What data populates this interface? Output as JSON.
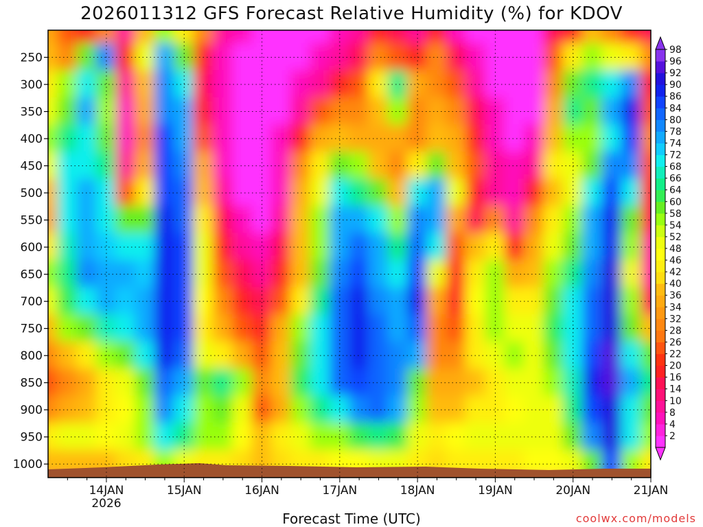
{
  "header": {
    "title": "2026011312 GFS Forecast Relative Humidity (%) for KDOV"
  },
  "footer": {
    "xlabel": "Forecast Time (UTC)",
    "credit": "coolwx.com/models"
  },
  "chart_data": {
    "type": "heatmap",
    "title": "2026011312 GFS Forecast Relative Humidity (%) for KDOV",
    "xlabel": "Forecast Time (UTC)",
    "ylabel": "",
    "x_ticks": [
      {
        "label": "14JAN",
        "sub": "2026",
        "t": 24
      },
      {
        "label": "15JAN",
        "sub": "",
        "t": 48
      },
      {
        "label": "16JAN",
        "sub": "",
        "t": 72
      },
      {
        "label": "17JAN",
        "sub": "",
        "t": 96
      },
      {
        "label": "18JAN",
        "sub": "",
        "t": 120
      },
      {
        "label": "19JAN",
        "sub": "",
        "t": 144
      },
      {
        "label": "20JAN",
        "sub": "",
        "t": 168
      },
      {
        "label": "21JAN",
        "sub": "",
        "t": 192
      }
    ],
    "xlim": [
      6,
      192
    ],
    "y_ticks": [
      250,
      300,
      350,
      400,
      450,
      500,
      550,
      600,
      650,
      700,
      750,
      800,
      850,
      900,
      950,
      1000
    ],
    "ylim": [
      200,
      1025
    ],
    "pressure_levels": [
      200,
      250,
      300,
      350,
      400,
      450,
      500,
      550,
      600,
      650,
      700,
      750,
      800,
      850,
      900,
      950,
      1000
    ],
    "colorbar": {
      "levels": [
        2,
        4,
        8,
        10,
        14,
        16,
        20,
        22,
        26,
        28,
        32,
        34,
        36,
        40,
        42,
        46,
        48,
        52,
        54,
        58,
        60,
        64,
        66,
        68,
        72,
        74,
        78,
        80,
        84,
        86,
        90,
        92,
        96,
        98
      ],
      "colors": [
        "#ff33ff",
        "#ff22dd",
        "#ff11bb",
        "#ff1199",
        "#ff1177",
        "#ff1155",
        "#ff2222",
        "#ff3311",
        "#ff5511",
        "#ff7711",
        "#ff8811",
        "#ff9911",
        "#ffaa11",
        "#ffbb11",
        "#ffdd11",
        "#ffee11",
        "#ffff11",
        "#eeff11",
        "#ccff11",
        "#99ff11",
        "#66ee22",
        "#33ee55",
        "#11ee88",
        "#11eebb",
        "#11eeee",
        "#11ccff",
        "#11aaff",
        "#1188ff",
        "#1166ff",
        "#1144ff",
        "#1122ee",
        "#2211dd",
        "#5511dd",
        "#8833ee"
      ]
    },
    "times": [
      6,
      12,
      18,
      24,
      30,
      36,
      42,
      48,
      54,
      60,
      66,
      72,
      78,
      84,
      90,
      96,
      102,
      108,
      114,
      120,
      126,
      132,
      138,
      144,
      150,
      156,
      162,
      168,
      174,
      180,
      186,
      192
    ],
    "rh": [
      [
        35,
        25,
        20,
        30,
        10,
        40,
        55,
        45,
        30,
        10,
        5,
        2,
        2,
        2,
        2,
        5,
        10,
        20,
        15,
        10,
        20,
        5,
        2,
        2,
        2,
        2,
        15,
        20,
        40,
        30,
        20,
        15
      ],
      [
        40,
        30,
        60,
        80,
        20,
        50,
        75,
        60,
        20,
        5,
        2,
        2,
        2,
        2,
        5,
        10,
        15,
        30,
        25,
        20,
        30,
        15,
        5,
        2,
        2,
        2,
        25,
        45,
        55,
        50,
        45,
        30
      ],
      [
        45,
        55,
        70,
        60,
        10,
        40,
        80,
        70,
        15,
        5,
        2,
        2,
        2,
        5,
        10,
        20,
        25,
        45,
        65,
        35,
        30,
        25,
        10,
        2,
        2,
        2,
        30,
        60,
        65,
        70,
        80,
        20
      ],
      [
        50,
        60,
        75,
        55,
        5,
        35,
        80,
        75,
        20,
        5,
        2,
        2,
        2,
        10,
        25,
        30,
        30,
        40,
        55,
        30,
        35,
        30,
        15,
        5,
        2,
        2,
        35,
        65,
        60,
        75,
        90,
        25
      ],
      [
        55,
        65,
        70,
        60,
        8,
        30,
        85,
        78,
        25,
        5,
        2,
        2,
        5,
        20,
        35,
        40,
        35,
        35,
        35,
        30,
        40,
        35,
        20,
        8,
        2,
        5,
        40,
        55,
        55,
        70,
        85,
        30
      ],
      [
        50,
        70,
        72,
        65,
        10,
        35,
        86,
        80,
        35,
        8,
        2,
        2,
        5,
        30,
        45,
        60,
        55,
        40,
        30,
        45,
        60,
        40,
        25,
        10,
        5,
        10,
        45,
        50,
        60,
        80,
        80,
        25
      ],
      [
        40,
        72,
        75,
        70,
        25,
        45,
        86,
        82,
        40,
        10,
        2,
        2,
        5,
        35,
        50,
        70,
        65,
        60,
        40,
        70,
        78,
        50,
        20,
        10,
        5,
        20,
        40,
        50,
        70,
        85,
        70,
        20
      ],
      [
        35,
        70,
        76,
        72,
        60,
        60,
        88,
        84,
        45,
        15,
        5,
        2,
        10,
        40,
        55,
        75,
        78,
        70,
        55,
        80,
        75,
        35,
        15,
        30,
        10,
        30,
        45,
        55,
        75,
        88,
        60,
        15
      ],
      [
        45,
        68,
        78,
        74,
        72,
        70,
        88,
        86,
        50,
        20,
        10,
        5,
        15,
        40,
        55,
        78,
        84,
        76,
        65,
        84,
        70,
        25,
        40,
        45,
        20,
        35,
        50,
        60,
        78,
        90,
        55,
        10
      ],
      [
        55,
        65,
        80,
        78,
        75,
        74,
        90,
        86,
        50,
        25,
        15,
        10,
        20,
        40,
        60,
        80,
        86,
        78,
        70,
        86,
        50,
        20,
        45,
        55,
        35,
        40,
        55,
        65,
        80,
        92,
        50,
        10
      ],
      [
        50,
        62,
        70,
        75,
        74,
        76,
        90,
        86,
        48,
        30,
        20,
        15,
        25,
        45,
        65,
        82,
        88,
        80,
        75,
        88,
        35,
        20,
        48,
        58,
        45,
        45,
        60,
        70,
        82,
        92,
        55,
        15
      ],
      [
        40,
        55,
        60,
        68,
        70,
        78,
        90,
        85,
        45,
        35,
        25,
        20,
        35,
        55,
        70,
        84,
        88,
        82,
        78,
        84,
        30,
        25,
        45,
        55,
        50,
        50,
        62,
        72,
        84,
        92,
        60,
        40
      ],
      [
        30,
        40,
        45,
        55,
        60,
        72,
        88,
        82,
        50,
        45,
        35,
        25,
        40,
        60,
        72,
        84,
        88,
        84,
        80,
        75,
        30,
        30,
        45,
        50,
        55,
        50,
        60,
        70,
        86,
        94,
        70,
        60
      ],
      [
        25,
        30,
        35,
        45,
        50,
        60,
        84,
        75,
        60,
        65,
        55,
        30,
        40,
        62,
        72,
        82,
        86,
        84,
        80,
        60,
        35,
        35,
        40,
        45,
        50,
        50,
        55,
        68,
        88,
        94,
        75,
        65
      ],
      [
        30,
        35,
        40,
        45,
        48,
        55,
        80,
        70,
        55,
        60,
        50,
        25,
        35,
        55,
        65,
        72,
        80,
        82,
        78,
        55,
        40,
        40,
        45,
        45,
        48,
        50,
        52,
        65,
        85,
        92,
        72,
        60
      ],
      [
        45,
        50,
        52,
        48,
        50,
        55,
        72,
        65,
        55,
        55,
        48,
        40,
        45,
        50,
        55,
        58,
        62,
        65,
        62,
        50,
        45,
        48,
        50,
        50,
        50,
        52,
        52,
        60,
        80,
        92,
        70,
        55
      ],
      [
        40,
        40,
        40,
        40,
        42,
        45,
        55,
        50,
        45,
        45,
        42,
        40,
        42,
        44,
        46,
        48,
        48,
        50,
        50,
        45,
        42,
        44,
        46,
        46,
        46,
        48,
        48,
        50,
        60,
        85,
        55,
        45
      ]
    ]
  }
}
